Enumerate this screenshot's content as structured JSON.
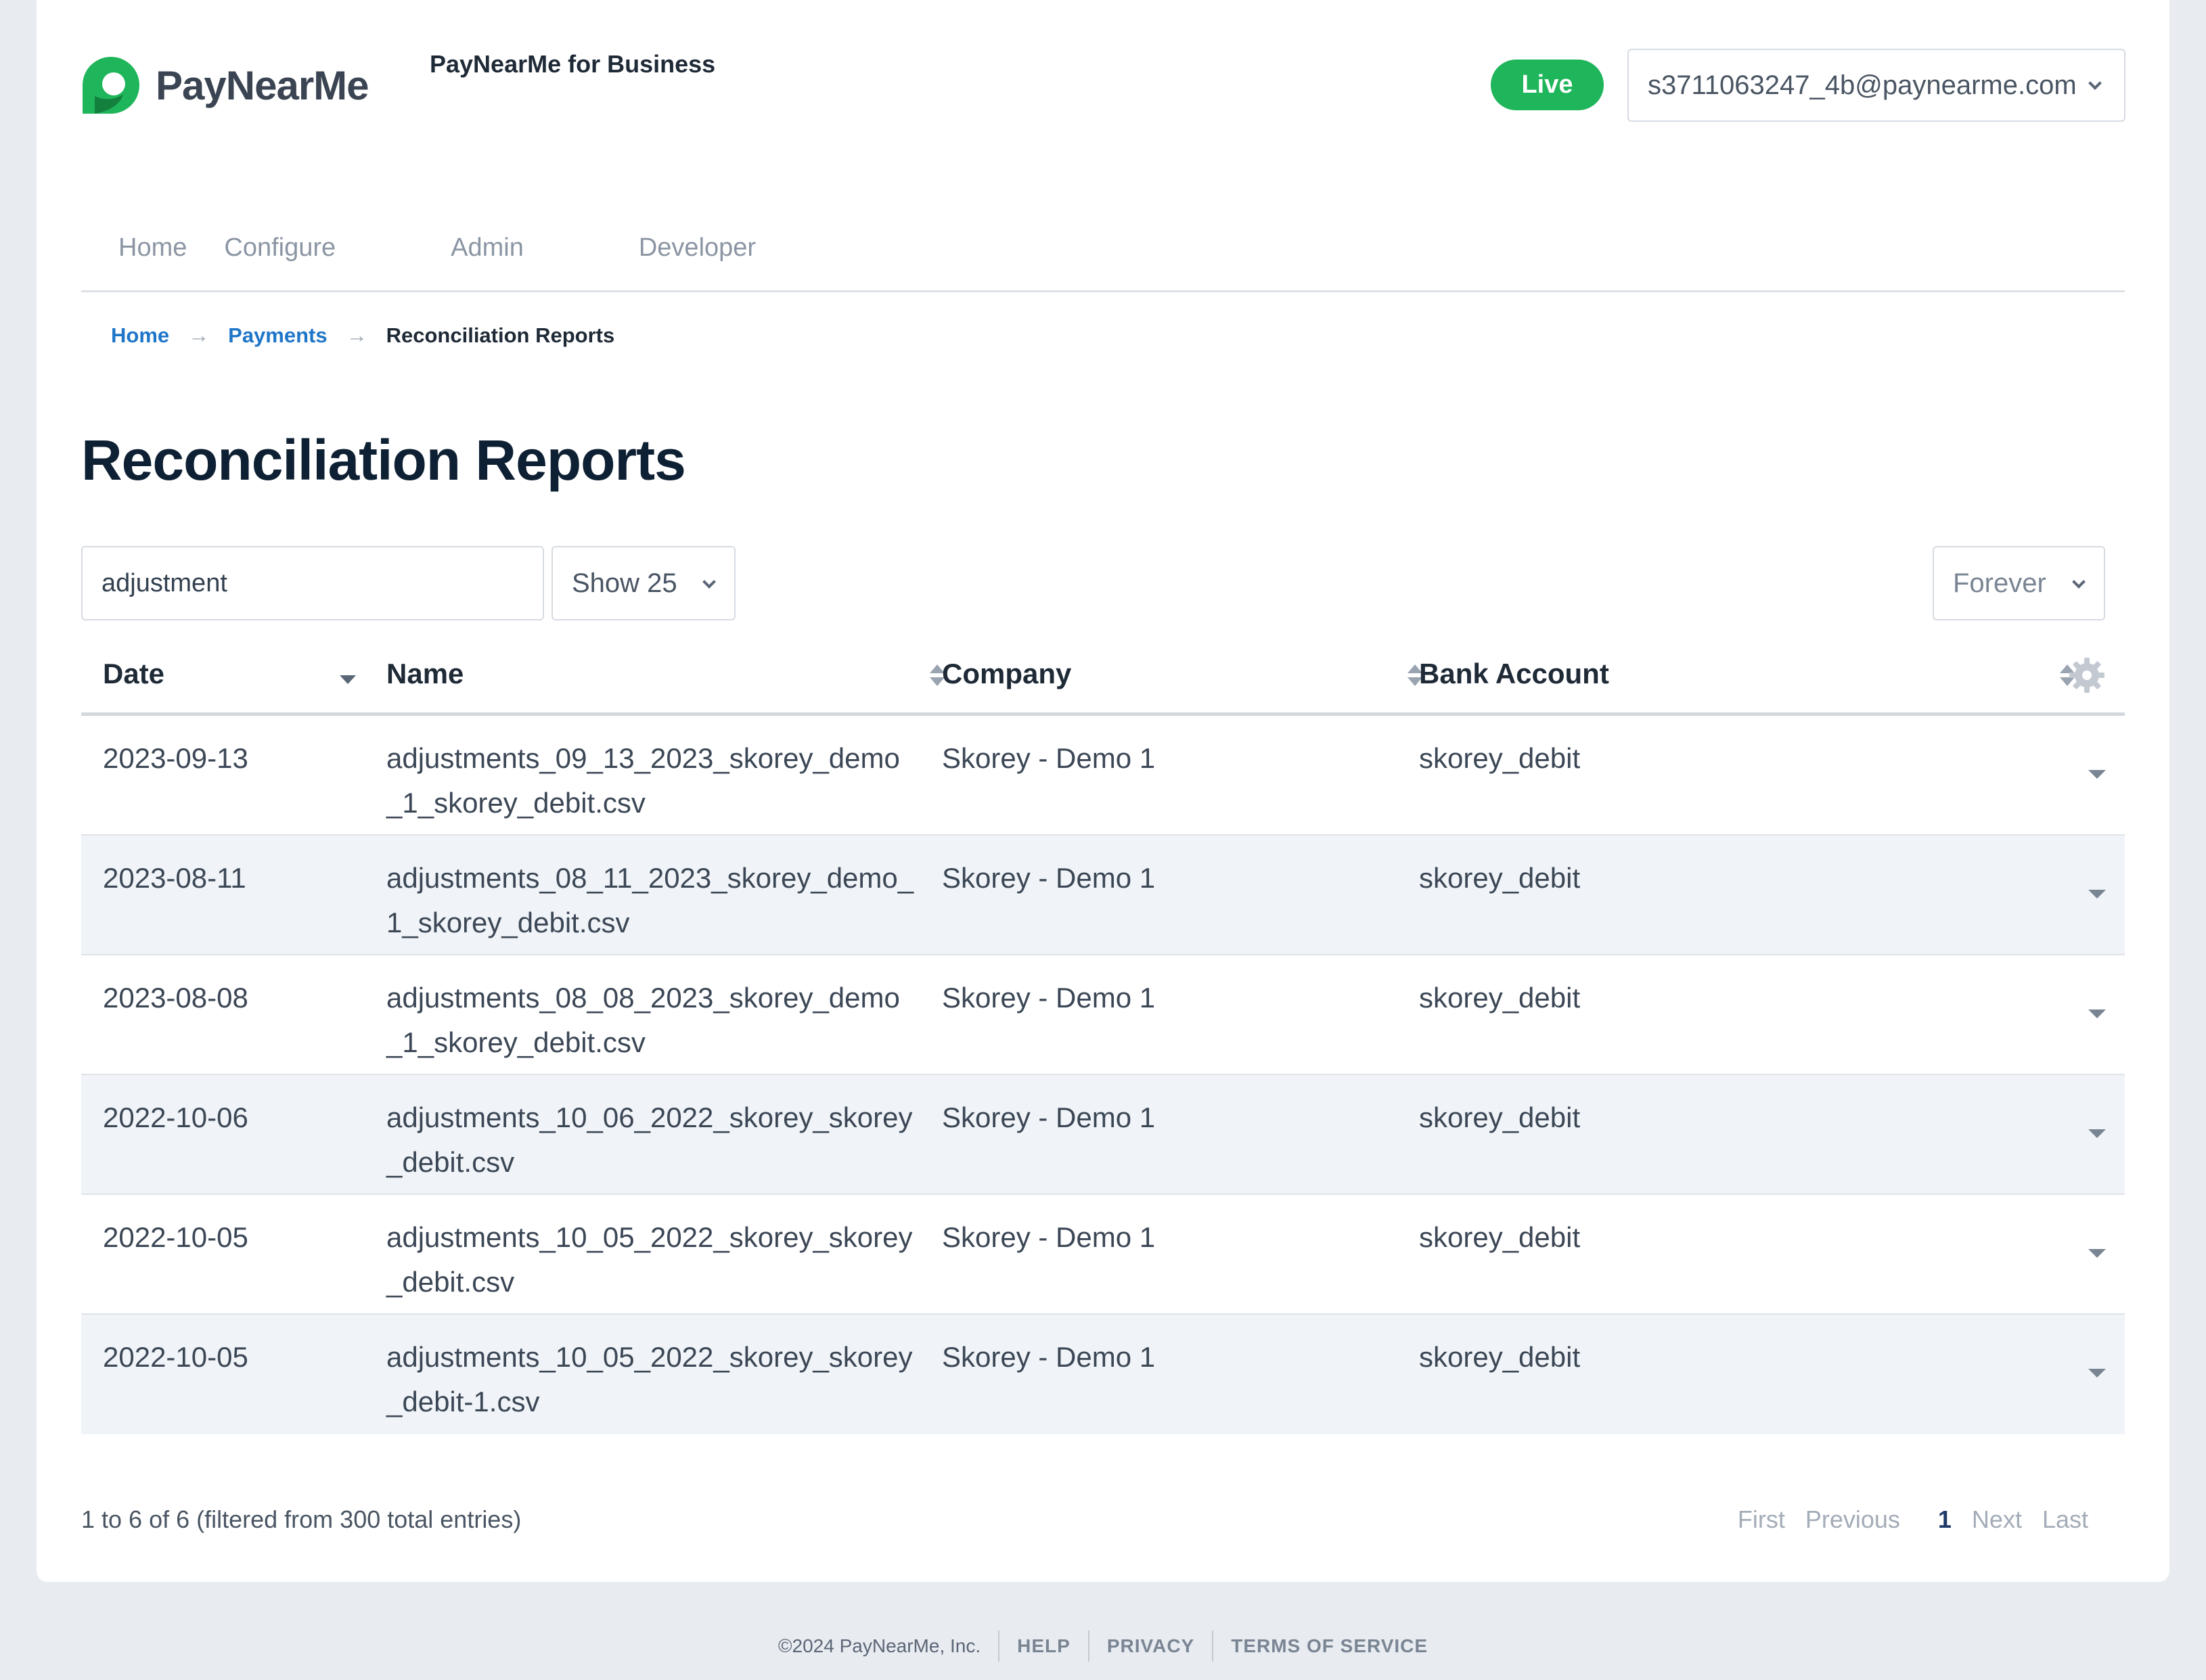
{
  "header": {
    "logo_text": "PayNearMe",
    "brand_subtitle": "PayNearMe for Business",
    "env_badge": "Live",
    "account_email": "s3711063247_4b@paynearme.com",
    "colors": {
      "brand_green": "#1fb55a",
      "link_blue": "#1f76c8",
      "title_navy": "#0e2033"
    }
  },
  "nav": {
    "items": [
      {
        "label": "Home"
      },
      {
        "label": "Configure"
      },
      {
        "label": "Admin"
      },
      {
        "label": "Developer"
      }
    ]
  },
  "breadcrumb": {
    "home": "Home",
    "payments": "Payments",
    "current": "Reconciliation Reports",
    "separator": "→"
  },
  "page": {
    "title": "Reconciliation Reports"
  },
  "filters": {
    "search_value": "adjustment",
    "page_size": "Show 25",
    "range": "Forever"
  },
  "table": {
    "columns": [
      "Date",
      "Name",
      "Company",
      "Bank Account"
    ],
    "rows": [
      {
        "date": "2023-09-13",
        "name": "adjustments_09_13_2023_skorey_demo_1_skorey_debit.csv",
        "company": "Skorey - Demo 1",
        "bank": "skorey_debit"
      },
      {
        "date": "2023-08-11",
        "name": "adjustments_08_11_2023_skorey_demo_1_skorey_debit.csv",
        "company": "Skorey - Demo 1",
        "bank": "skorey_debit"
      },
      {
        "date": "2023-08-08",
        "name": "adjustments_08_08_2023_skorey_demo_1_skorey_debit.csv",
        "company": "Skorey - Demo 1",
        "bank": "skorey_debit"
      },
      {
        "date": "2022-10-06",
        "name": "adjustments_10_06_2022_skorey_skorey_debit.csv",
        "company": "Skorey - Demo 1",
        "bank": "skorey_debit"
      },
      {
        "date": "2022-10-05",
        "name": "adjustments_10_05_2022_skorey_skorey_debit.csv",
        "company": "Skorey - Demo 1",
        "bank": "skorey_debit"
      },
      {
        "date": "2022-10-05",
        "name": "adjustments_10_05_2022_skorey_skorey_debit-1.csv",
        "company": "Skorey - Demo 1",
        "bank": "skorey_debit"
      }
    ]
  },
  "pagination": {
    "info": "1 to 6 of 6 (filtered from 300 total entries)",
    "first": "First",
    "previous": "Previous",
    "current": "1",
    "next": "Next",
    "last": "Last"
  },
  "footer": {
    "copyright": "©2024 PayNearMe, Inc.",
    "help": "HELP",
    "privacy": "PRIVACY",
    "terms": "TERMS OF SERVICE"
  }
}
